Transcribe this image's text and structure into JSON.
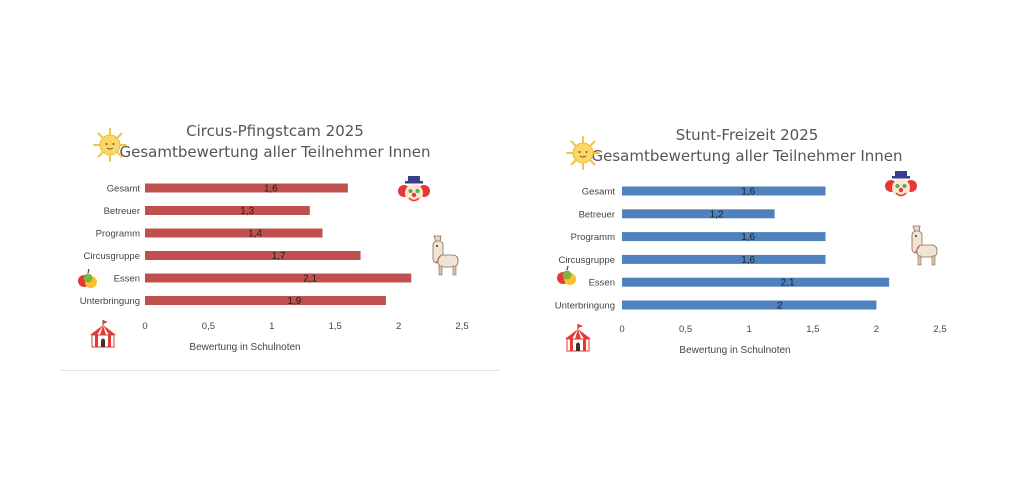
{
  "charts": [
    {
      "id": "left",
      "type": "bar",
      "orientation": "horizontal",
      "title_line1": "Circus-Pfingstcam 2025",
      "title_line2": "Gesamtbewertung aller Teilnehmer Innen",
      "categories": [
        "Gesamt",
        "Betreuer",
        "Programm",
        "Circusgruppe",
        "Essen",
        "Unterbringung"
      ],
      "values": [
        1.6,
        1.3,
        1.4,
        1.7,
        2.1,
        1.9
      ],
      "data_labels": [
        "1,6",
        "1,3",
        "1,4",
        "1,7",
        "2,1",
        "1,9"
      ],
      "xlabel": "Bewertung in Schulnoten",
      "xlim": [
        0,
        2.5
      ],
      "xticks": [
        0,
        0.5,
        1,
        1.5,
        2,
        2.5
      ],
      "xtick_labels": [
        "0",
        "0,5",
        "1",
        "1,5",
        "2",
        "2,5"
      ],
      "bar_color": "#c0504d",
      "grid": false,
      "legend": "none"
    },
    {
      "id": "right",
      "type": "bar",
      "orientation": "horizontal",
      "title_line1": "Stunt-Freizeit 2025",
      "title_line2": "Gesamtbewertung aller Teilnehmer Innen",
      "categories": [
        "Gesamt",
        "Betreuer",
        "Programm",
        "Circusgruppe",
        "Essen",
        "Unterbringung"
      ],
      "values": [
        1.6,
        1.2,
        1.6,
        1.6,
        2.1,
        2.0
      ],
      "data_labels": [
        "1,6",
        "1,2",
        "1,6",
        "1,6",
        "2,1",
        "2"
      ],
      "xlabel": "Bewertung in Schulnoten",
      "xlim": [
        0,
        2.5
      ],
      "xticks": [
        0,
        0.5,
        1,
        1.5,
        2,
        2.5
      ],
      "xtick_labels": [
        "0",
        "0,5",
        "1",
        "1,5",
        "2",
        "2,5"
      ],
      "bar_color": "#4f81bd",
      "grid": false,
      "legend": "none"
    }
  ],
  "icons": {
    "sun": "sun-icon",
    "clown": "clown-icon",
    "llama": "llama-icon",
    "fruit": "fruit-icon",
    "circus_tent": "circus-tent-icon"
  }
}
